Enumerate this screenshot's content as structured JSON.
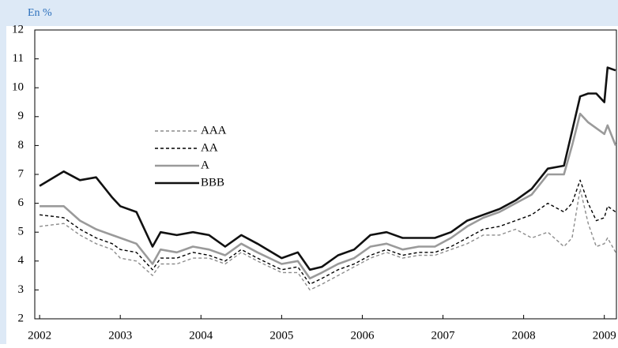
{
  "chart_data": {
    "type": "line",
    "ylabel": "En %",
    "x": [
      2002,
      2002.3,
      2002.5,
      2002.7,
      2002.9,
      2003.0,
      2003.2,
      2003.4,
      2003.5,
      2003.7,
      2003.9,
      2004.1,
      2004.3,
      2004.5,
      2004.7,
      2005.0,
      2005.2,
      2005.35,
      2005.5,
      2005.7,
      2005.9,
      2006.1,
      2006.3,
      2006.5,
      2006.7,
      2006.9,
      2007.1,
      2007.3,
      2007.5,
      2007.7,
      2007.9,
      2008.1,
      2008.3,
      2008.5,
      2008.6,
      2008.7,
      2008.8,
      2008.9,
      2009.0,
      2009.04,
      2009.14
    ],
    "series": [
      {
        "name": "AAA",
        "color": "#8c8c8c",
        "line_style": "dashed",
        "values": [
          5.2,
          5.3,
          4.9,
          4.6,
          4.4,
          4.1,
          4.0,
          3.5,
          3.9,
          3.9,
          4.1,
          4.1,
          3.9,
          4.3,
          4.0,
          3.6,
          3.6,
          3.0,
          3.2,
          3.5,
          3.8,
          4.1,
          4.3,
          4.1,
          4.2,
          4.2,
          4.4,
          4.6,
          4.9,
          4.9,
          5.1,
          4.8,
          5.0,
          4.5,
          4.8,
          6.5,
          5.3,
          4.5,
          4.6,
          4.8,
          4.3
        ]
      },
      {
        "name": "AA",
        "color": "#000000",
        "line_style": "dashed",
        "values": [
          5.6,
          5.5,
          5.1,
          4.8,
          4.6,
          4.4,
          4.3,
          3.7,
          4.1,
          4.1,
          4.3,
          4.2,
          4.0,
          4.4,
          4.1,
          3.7,
          3.8,
          3.2,
          3.4,
          3.7,
          3.9,
          4.2,
          4.4,
          4.2,
          4.3,
          4.3,
          4.5,
          4.8,
          5.1,
          5.2,
          5.4,
          5.6,
          6.0,
          5.7,
          6.0,
          6.8,
          6.0,
          5.4,
          5.5,
          5.9,
          5.7
        ]
      },
      {
        "name": "A",
        "color": "#9a9a9a",
        "line_style": "solid",
        "values": [
          5.9,
          5.9,
          5.4,
          5.1,
          4.9,
          4.8,
          4.6,
          3.9,
          4.4,
          4.3,
          4.5,
          4.4,
          4.2,
          4.6,
          4.3,
          3.9,
          4.0,
          3.4,
          3.6,
          3.9,
          4.1,
          4.5,
          4.6,
          4.4,
          4.5,
          4.5,
          4.8,
          5.2,
          5.5,
          5.7,
          6.0,
          6.3,
          7.0,
          7.0,
          8.0,
          9.1,
          8.8,
          8.6,
          8.4,
          8.7,
          8.0
        ]
      },
      {
        "name": "BBB",
        "color": "#111111",
        "line_style": "solid",
        "values": [
          6.6,
          7.1,
          6.8,
          6.9,
          6.2,
          5.9,
          5.7,
          4.5,
          5.0,
          4.9,
          5.0,
          4.9,
          4.5,
          4.9,
          4.6,
          4.1,
          4.3,
          3.7,
          3.8,
          4.2,
          4.4,
          4.9,
          5.0,
          4.8,
          4.8,
          4.8,
          5.0,
          5.4,
          5.6,
          5.8,
          6.1,
          6.5,
          7.2,
          7.3,
          8.5,
          9.7,
          9.8,
          9.8,
          9.5,
          10.7,
          10.6
        ]
      }
    ],
    "xlim": [
      2001.94,
      2009.15
    ],
    "xticks": [
      2002,
      2003,
      2004,
      2005,
      2006,
      2007,
      2008,
      2009
    ],
    "ylim": [
      2,
      12
    ],
    "yticks": [
      2,
      3,
      4,
      5,
      6,
      7,
      8,
      9,
      10,
      11,
      12
    ],
    "grid": false,
    "legend": "upper left"
  }
}
